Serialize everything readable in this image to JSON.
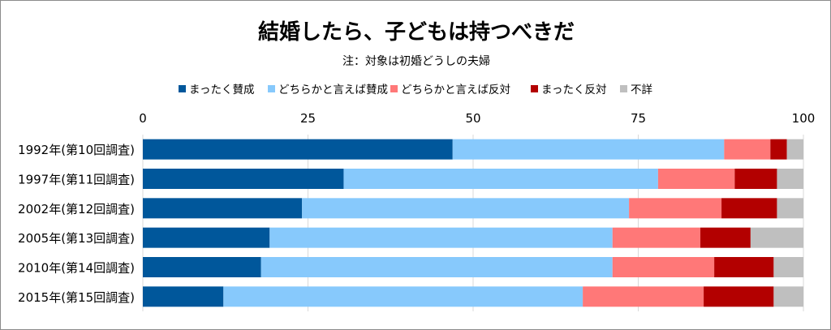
{
  "chart_data": {
    "type": "bar",
    "orientation": "horizontal",
    "stacked": true,
    "title": "結婚したら、子どもは持つべきだ",
    "subtitle": "注：対象は初婚どうしの夫婦",
    "xlim": [
      0,
      100
    ],
    "xticks": [
      "0",
      "25",
      "50",
      "75",
      "100"
    ],
    "grid": true,
    "legend_position": "top",
    "categories": [
      "1992年(第10回調査)",
      "1997年(第11回調査)",
      "2002年(第12回調査)",
      "2005年(第13回調査)",
      "2010年(第14回調査)",
      "2015年(第15回調査)"
    ],
    "series": [
      {
        "name": "まったく賛成",
        "color": "#00579b",
        "values": [
          46.9,
          30.4,
          24.1,
          19.2,
          17.9,
          12.2
        ]
      },
      {
        "name": "どちらかと言えば賛成",
        "color": "#87c9fc",
        "values": [
          41.1,
          47.6,
          49.5,
          51.9,
          53.2,
          54.4
        ]
      },
      {
        "name": "どちらかと言えば反対",
        "color": "#ff7878",
        "values": [
          7.0,
          11.6,
          14.0,
          13.3,
          15.4,
          18.3
        ]
      },
      {
        "name": "まったく反対",
        "color": "#b30000",
        "values": [
          2.5,
          6.4,
          8.4,
          7.6,
          9.0,
          10.6
        ]
      },
      {
        "name": "不詳",
        "color": "#bfbfbf",
        "values": [
          2.5,
          4.0,
          4.0,
          8.0,
          4.5,
          4.5
        ]
      }
    ]
  }
}
